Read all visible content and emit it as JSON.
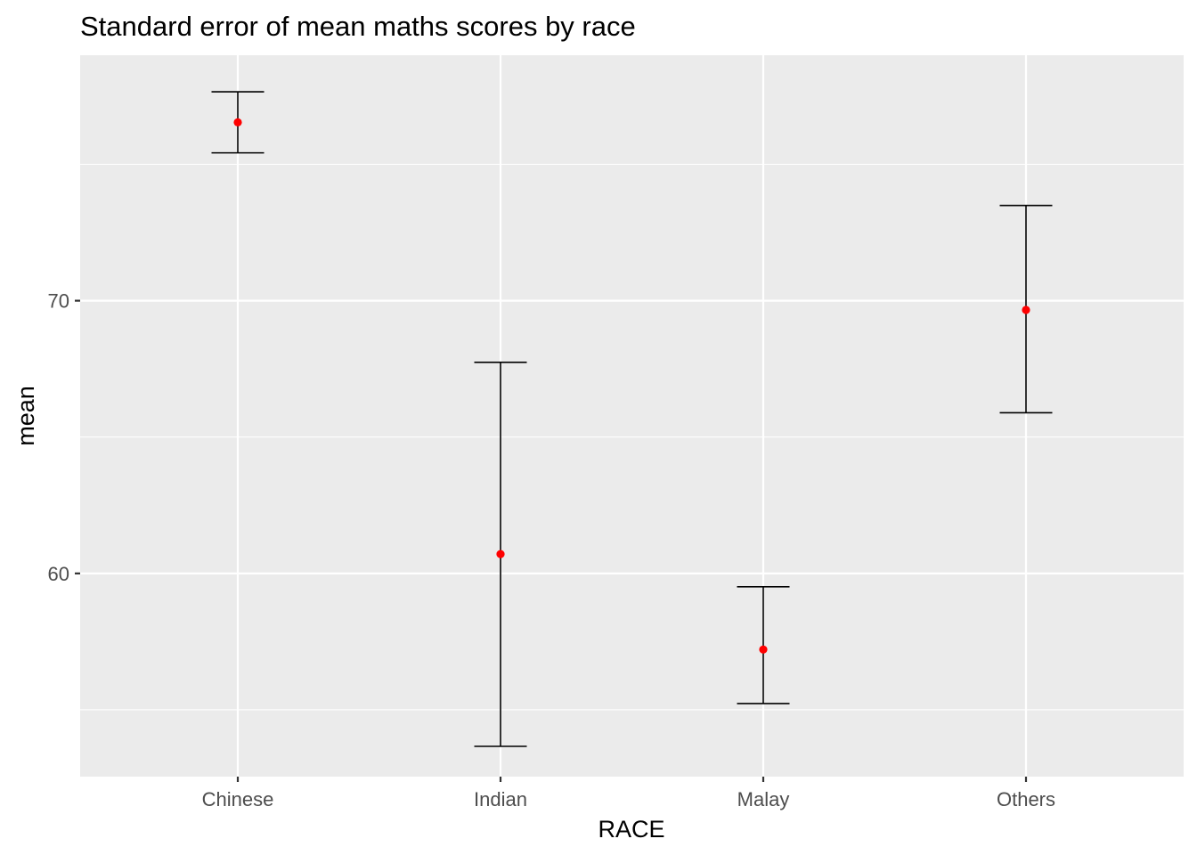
{
  "chart_data": {
    "type": "scatter",
    "title": "Standard error of mean maths scores by race",
    "xlabel": "RACE",
    "ylabel": "mean",
    "categories": [
      "Chinese",
      "Indian",
      "Malay",
      "Others"
    ],
    "series": [
      {
        "values": [
          76.54,
          60.71,
          57.21,
          69.66
        ],
        "ymin": [
          75.42,
          53.66,
          55.23,
          65.89
        ],
        "ymax": [
          77.66,
          67.74,
          59.51,
          73.49
        ]
      }
    ],
    "ylim": [
      52.55,
      79.0
    ],
    "y_ticks": [
      60,
      70
    ],
    "y_tick_labels": [
      "60",
      "70"
    ],
    "grid": true,
    "point_color": "#ff0000",
    "errorbar_color": "#000000",
    "panel_background": "#ebebeb",
    "grid_color": "#ffffff"
  }
}
